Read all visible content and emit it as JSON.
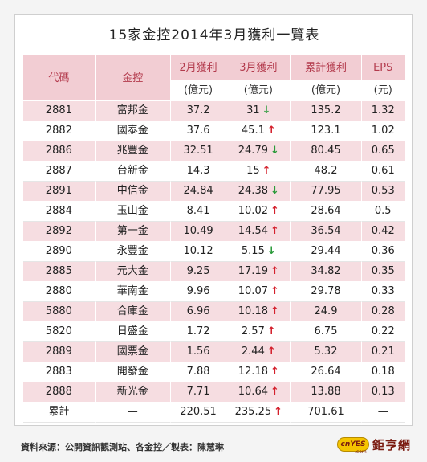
{
  "title": "15家金控2014年3月獲利一覽表",
  "headers": {
    "code": "代碼",
    "name": "金控",
    "feb": "2月獲利",
    "mar": "3月獲利",
    "cum": "累計獲利",
    "eps": "EPS",
    "unit_yi": "(億元)",
    "unit_yuan": "(元)"
  },
  "rows": [
    {
      "code": "2881",
      "name": "富邦金",
      "feb": "37.2",
      "mar": "31",
      "trend": "down",
      "cum": "135.2",
      "eps": "1.32"
    },
    {
      "code": "2882",
      "name": "國泰金",
      "feb": "37.6",
      "mar": "45.1",
      "trend": "up",
      "cum": "123.1",
      "eps": "1.02"
    },
    {
      "code": "2886",
      "name": "兆豐金",
      "feb": "32.51",
      "mar": "24.79",
      "trend": "down",
      "cum": "80.45",
      "eps": "0.65"
    },
    {
      "code": "2887",
      "name": "台新金",
      "feb": "14.3",
      "mar": "15",
      "trend": "up",
      "cum": "48.2",
      "eps": "0.61"
    },
    {
      "code": "2891",
      "name": "中信金",
      "feb": "24.84",
      "mar": "24.38",
      "trend": "down",
      "cum": "77.95",
      "eps": "0.53"
    },
    {
      "code": "2884",
      "name": "玉山金",
      "feb": "8.41",
      "mar": "10.02",
      "trend": "up",
      "cum": "28.64",
      "eps": "0.5"
    },
    {
      "code": "2892",
      "name": "第一金",
      "feb": "10.49",
      "mar": "14.54",
      "trend": "up",
      "cum": "36.54",
      "eps": "0.42"
    },
    {
      "code": "2890",
      "name": "永豐金",
      "feb": "10.12",
      "mar": "5.15",
      "trend": "down",
      "cum": "29.44",
      "eps": "0.36"
    },
    {
      "code": "2885",
      "name": "元大金",
      "feb": "9.25",
      "mar": "17.19",
      "trend": "up",
      "cum": "34.82",
      "eps": "0.35"
    },
    {
      "code": "2880",
      "name": "華南金",
      "feb": "9.96",
      "mar": "10.07",
      "trend": "up",
      "cum": "29.78",
      "eps": "0.33"
    },
    {
      "code": "5880",
      "name": "合庫金",
      "feb": "6.96",
      "mar": "10.18",
      "trend": "up",
      "cum": "24.9",
      "eps": "0.28"
    },
    {
      "code": "5820",
      "name": "日盛金",
      "feb": "1.72",
      "mar": "2.57",
      "trend": "up",
      "cum": "6.75",
      "eps": "0.22"
    },
    {
      "code": "2889",
      "name": "國票金",
      "feb": "1.56",
      "mar": "2.44",
      "trend": "up",
      "cum": "5.32",
      "eps": "0.21"
    },
    {
      "code": "2883",
      "name": "開發金",
      "feb": "7.88",
      "mar": "12.18",
      "trend": "up",
      "cum": "26.64",
      "eps": "0.18"
    },
    {
      "code": "2888",
      "name": "新光金",
      "feb": "7.71",
      "mar": "10.64",
      "trend": "up",
      "cum": "13.88",
      "eps": "0.13"
    }
  ],
  "total": {
    "code": "累計",
    "name": "—",
    "feb": "220.51",
    "mar": "235.25",
    "trend": "up",
    "cum": "701.61",
    "eps": "—"
  },
  "arrows": {
    "up": "↑",
    "down": "↓"
  },
  "colors": {
    "header_bg": "#f2cdd3",
    "pink_row": "#f6dde1",
    "header_text": "#b33a4c",
    "up": "#d4202c",
    "down": "#2a9a3a"
  },
  "footer": "資料來源：公開資訊觀測站、各金控／製表：陳慧琳",
  "logo": {
    "badge": "cnYES",
    "domain": ".com",
    "name": "鉅亨網"
  }
}
